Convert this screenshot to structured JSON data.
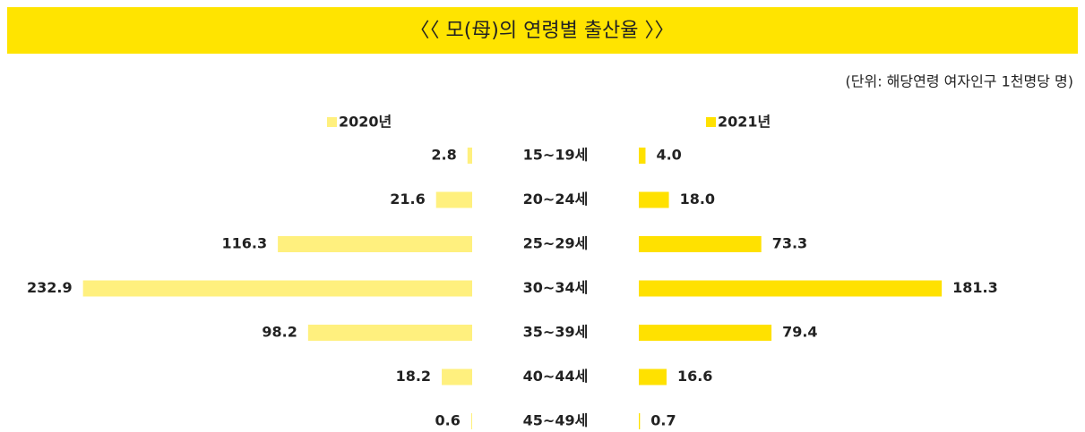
{
  "chart_data": {
    "type": "butterfly",
    "title": "〈〈 모(母)의 연령별 출산율 〉〉",
    "subtitle": "(단위: 해당연령 여자인구 1천명당 명)",
    "categories": [
      "15~19세",
      "20~24세",
      "25~29세",
      "30~34세",
      "35~39세",
      "40~44세",
      "45~49세"
    ],
    "series": [
      {
        "name": "2020년",
        "color": "#fff07e",
        "values": [
          2.8,
          21.6,
          116.3,
          232.9,
          98.2,
          18.2,
          0.6
        ],
        "value_labels": [
          "2.8",
          "21.6",
          "116.3",
          "232.9",
          "98.2",
          "18.2",
          "0.6"
        ]
      },
      {
        "name": "2021년",
        "color": "#ffe100",
        "values": [
          4.0,
          18.0,
          73.3,
          181.3,
          79.4,
          16.6,
          0.7
        ],
        "value_labels": [
          "4.0",
          "18.0",
          "73.3",
          "181.3",
          "79.4",
          "16.6",
          "0.7"
        ]
      }
    ],
    "title_color": "#ffe400"
  }
}
